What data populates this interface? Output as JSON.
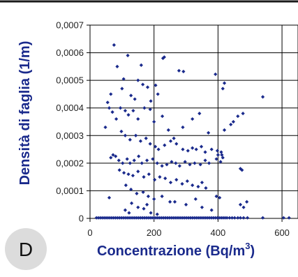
{
  "panel": {
    "letter": "D"
  },
  "chart_data": {
    "type": "scatter",
    "title": "",
    "xlabel": "Concentrazione (Bq/m",
    "xlabel_superscript": "3",
    "xlabel_suffix": ")",
    "ylabel": "Densità di faglia (1/m)",
    "xlim": [
      0,
      650
    ],
    "ylim": [
      0,
      0.0007
    ],
    "xticks": [
      0,
      200,
      400,
      600
    ],
    "xtick_labels": [
      "0",
      "200",
      "400",
      "600"
    ],
    "yticks": [
      0,
      0.0001,
      0.0002,
      0.0003,
      0.0004,
      0.0005,
      0.0006,
      0.0007
    ],
    "ytick_labels": [
      "0",
      "0,0001",
      "0,0002",
      "0,0003",
      "0,0004",
      "0,0005",
      "0,0006",
      "0,0007"
    ],
    "grid": true,
    "marker_color": "#1a2a8c",
    "series": [
      {
        "points": [
          [
            20,
            2e-06
          ],
          [
            26,
            2e-06
          ],
          [
            32,
            2e-06
          ],
          [
            38,
            2e-06
          ],
          [
            44,
            2e-06
          ],
          [
            50,
            2e-06
          ],
          [
            56,
            2e-06
          ],
          [
            62,
            2e-06
          ],
          [
            68,
            2e-06
          ],
          [
            74,
            2e-06
          ],
          [
            80,
            2e-06
          ],
          [
            86,
            2e-06
          ],
          [
            92,
            2e-06
          ],
          [
            98,
            2e-06
          ],
          [
            104,
            2e-06
          ],
          [
            110,
            2e-06
          ],
          [
            116,
            2e-06
          ],
          [
            122,
            2e-06
          ],
          [
            128,
            2e-06
          ],
          [
            134,
            2e-06
          ],
          [
            140,
            2e-06
          ],
          [
            146,
            2e-06
          ],
          [
            152,
            2e-06
          ],
          [
            158,
            2e-06
          ],
          [
            164,
            2e-06
          ],
          [
            170,
            2e-06
          ],
          [
            176,
            2e-06
          ],
          [
            182,
            2e-06
          ],
          [
            188,
            2e-06
          ],
          [
            194,
            2e-06
          ],
          [
            200,
            2e-06
          ],
          [
            206,
            2e-06
          ],
          [
            212,
            2e-06
          ],
          [
            218,
            2e-06
          ],
          [
            224,
            2e-06
          ],
          [
            230,
            2e-06
          ],
          [
            236,
            2e-06
          ],
          [
            242,
            2e-06
          ],
          [
            248,
            2e-06
          ],
          [
            254,
            2e-06
          ],
          [
            260,
            2e-06
          ],
          [
            266,
            2e-06
          ],
          [
            272,
            2e-06
          ],
          [
            278,
            2e-06
          ],
          [
            284,
            2e-06
          ],
          [
            290,
            2e-06
          ],
          [
            296,
            2e-06
          ],
          [
            302,
            2e-06
          ],
          [
            308,
            2e-06
          ],
          [
            314,
            2e-06
          ],
          [
            320,
            2e-06
          ],
          [
            326,
            2e-06
          ],
          [
            332,
            2e-06
          ],
          [
            338,
            2e-06
          ],
          [
            344,
            2e-06
          ],
          [
            350,
            2e-06
          ],
          [
            356,
            2e-06
          ],
          [
            362,
            2e-06
          ],
          [
            368,
            2e-06
          ],
          [
            374,
            2e-06
          ],
          [
            380,
            2e-06
          ],
          [
            386,
            2e-06
          ],
          [
            392,
            2e-06
          ],
          [
            398,
            2e-06
          ],
          [
            404,
            2e-06
          ],
          [
            410,
            2e-06
          ],
          [
            416,
            2e-06
          ],
          [
            422,
            2e-06
          ],
          [
            428,
            2e-06
          ],
          [
            436,
            2e-06
          ],
          [
            444,
            2e-06
          ],
          [
            452,
            2e-06
          ],
          [
            462,
            2e-06
          ],
          [
            470,
            2e-06
          ],
          [
            480,
            2e-06
          ],
          [
            492,
            2e-06
          ],
          [
            540,
            2e-06
          ],
          [
            605,
            2e-06
          ],
          [
            622,
            2e-06
          ],
          [
            75,
            0.000628
          ],
          [
            118,
            0.00059
          ],
          [
            160,
            0.000555
          ],
          [
            85,
            0.00055
          ],
          [
            228,
            0.00058
          ],
          [
            232,
            0.000584
          ],
          [
            278,
            0.000535
          ],
          [
            292,
            0.000532
          ],
          [
            392,
            0.000522
          ],
          [
            540,
            0.00044
          ],
          [
            105,
            0.000505
          ],
          [
            100,
            0.00047
          ],
          [
            150,
            0.0005
          ],
          [
            165,
            0.000485
          ],
          [
            205,
            0.000482
          ],
          [
            212,
            0.00045
          ],
          [
            128,
            0.000445
          ],
          [
            140,
            0.000432
          ],
          [
            180,
            0.000475
          ],
          [
            190,
            0.000425
          ],
          [
            420,
            0.00049
          ],
          [
            415,
            0.00047
          ],
          [
            65,
            0.00045
          ],
          [
            55,
            0.00042
          ],
          [
            48,
            0.00033
          ],
          [
            60,
            0.0004
          ],
          [
            70,
            0.000385
          ],
          [
            82,
            0.00036
          ],
          [
            95,
            0.0004
          ],
          [
            110,
            0.00039
          ],
          [
            120,
            0.000375
          ],
          [
            135,
            0.00039
          ],
          [
            150,
            0.00036
          ],
          [
            170,
            0.0004
          ],
          [
            188,
            0.000395
          ],
          [
            200,
            0.00035
          ],
          [
            226,
            0.00037
          ],
          [
            245,
            0.00032
          ],
          [
            262,
            0.00029
          ],
          [
            290,
            0.00033
          ],
          [
            320,
            0.00036
          ],
          [
            342,
            0.00038
          ],
          [
            370,
            0.00031
          ],
          [
            420,
            0.00032
          ],
          [
            448,
            0.00035
          ],
          [
            462,
            0.00037
          ],
          [
            478,
            0.00038
          ],
          [
            440,
            0.00034
          ],
          [
            98,
            0.000315
          ],
          [
            110,
            0.0003
          ],
          [
            125,
            0.000285
          ],
          [
            143,
            0.0003
          ],
          [
            158,
            0.00028
          ],
          [
            175,
            0.00029
          ],
          [
            188,
            0.00027
          ],
          [
            204,
            0.00026
          ],
          [
            214,
            0.00025
          ],
          [
            233,
            0.000265
          ],
          [
            252,
            0.00028
          ],
          [
            270,
            0.00027
          ],
          [
            290,
            0.00025
          ],
          [
            306,
            0.000245
          ],
          [
            320,
            0.000255
          ],
          [
            332,
            0.00025
          ],
          [
            348,
            0.00026
          ],
          [
            360,
            0.00024
          ],
          [
            380,
            0.00025
          ],
          [
            398,
            0.000245
          ],
          [
            410,
            0.00024
          ],
          [
            412,
            0.00023
          ],
          [
            400,
            0.00023
          ],
          [
            415,
            0.00022
          ],
          [
            65,
            0.00022
          ],
          [
            72,
            0.00023
          ],
          [
            80,
            0.000225
          ],
          [
            90,
            0.00021
          ],
          [
            102,
            0.0002
          ],
          [
            116,
            0.000215
          ],
          [
            125,
            0.0002
          ],
          [
            138,
            0.00021
          ],
          [
            152,
            0.000225
          ],
          [
            162,
            0.0002
          ],
          [
            178,
            0.00021
          ],
          [
            196,
            0.000215
          ],
          [
            210,
            0.0002
          ],
          [
            225,
            0.00019
          ],
          [
            240,
            0.000195
          ],
          [
            255,
            0.000205
          ],
          [
            268,
            0.0002
          ],
          [
            280,
            0.00019
          ],
          [
            297,
            0.000205
          ],
          [
            312,
            0.000195
          ],
          [
            327,
            0.0002
          ],
          [
            345,
            0.000195
          ],
          [
            360,
            0.00021
          ],
          [
            372,
            0.0002
          ],
          [
            395,
            0.000215
          ],
          [
            408,
            0.000205
          ],
          [
            470,
            0.00018
          ],
          [
            475,
            0.000175
          ],
          [
            92,
            0.000175
          ],
          [
            106,
            0.000165
          ],
          [
            120,
            0.00016
          ],
          [
            134,
            0.000155
          ],
          [
            150,
            0.00017
          ],
          [
            168,
            0.00015
          ],
          [
            184,
            0.00016
          ],
          [
            202,
            0.00014
          ],
          [
            218,
            0.00015
          ],
          [
            235,
            0.000145
          ],
          [
            252,
            0.00013
          ],
          [
            270,
            0.00014
          ],
          [
            288,
            0.000125
          ],
          [
            304,
            0.000135
          ],
          [
            320,
            0.00012
          ],
          [
            338,
            0.000115
          ],
          [
            350,
            0.00013
          ],
          [
            362,
            0.00011
          ],
          [
            112,
            0.00012
          ],
          [
            128,
            0.000105
          ],
          [
            146,
            9e-05
          ],
          [
            166,
            9.5e-05
          ],
          [
            182,
            8e-05
          ],
          [
            200,
            7e-05
          ],
          [
            225,
            8e-05
          ],
          [
            250,
            6e-05
          ],
          [
            265,
            6e-05
          ],
          [
            300,
            5e-05
          ],
          [
            330,
            7e-05
          ],
          [
            350,
            4e-05
          ],
          [
            380,
            3e-05
          ],
          [
            395,
            8e-05
          ],
          [
            405,
            7.5e-05
          ],
          [
            470,
            5e-05
          ],
          [
            480,
            4e-05
          ],
          [
            490,
            6e-05
          ],
          [
            60,
            7.5e-05
          ],
          [
            130,
            5.5e-05
          ],
          [
            150,
            4e-05
          ],
          [
            168,
            3.5e-05
          ],
          [
            178,
            5e-05
          ],
          [
            110,
            3e-05
          ],
          [
            122,
            2e-05
          ],
          [
            190,
            2e-05
          ],
          [
            210,
            1.5e-05
          ]
        ]
      }
    ]
  }
}
